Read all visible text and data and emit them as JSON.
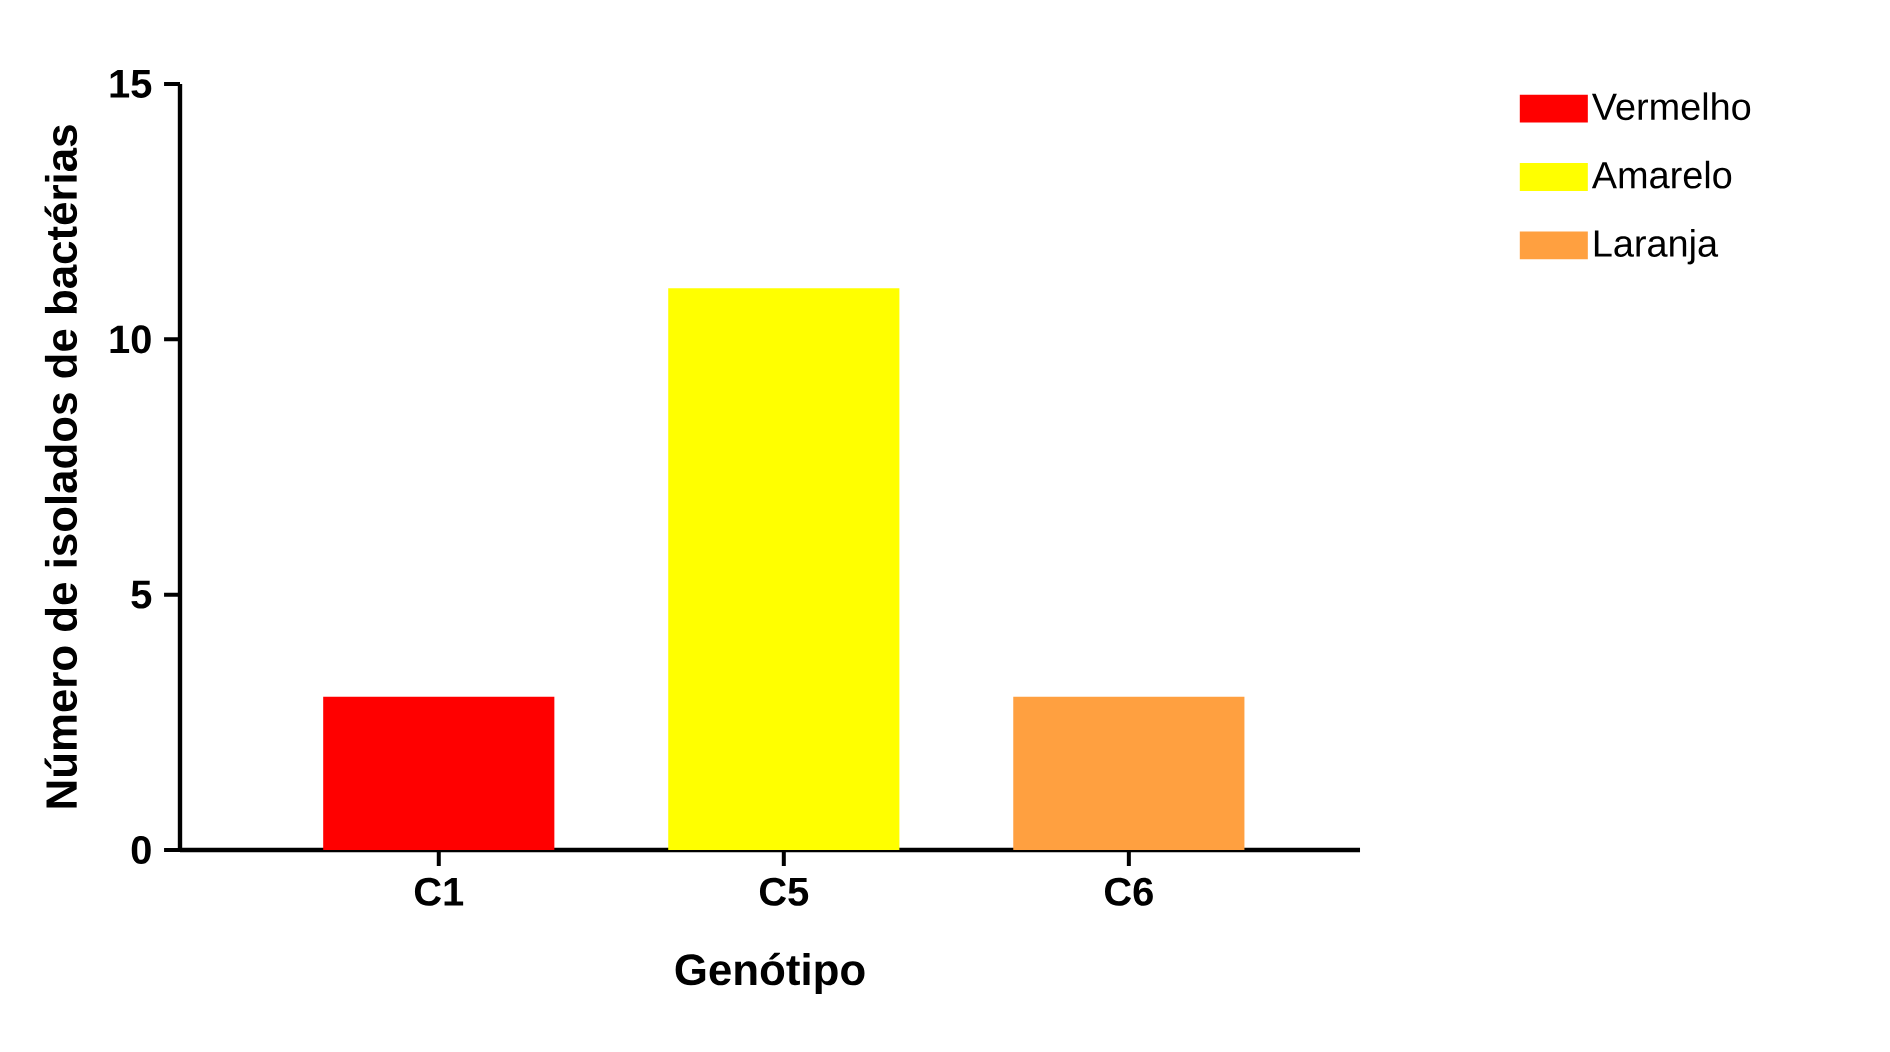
{
  "chart_data": {
    "type": "bar",
    "xlabel": "Genótipo",
    "ylabel": "Número de isolados de bactérias",
    "categories": [
      "C1",
      "C5",
      "C6"
    ],
    "series": [
      {
        "name": "Vermelho",
        "color": "#ff0000",
        "values": [
          3,
          null,
          null
        ]
      },
      {
        "name": "Amarelo",
        "color": "#ffff00",
        "values": [
          null,
          11,
          null
        ]
      },
      {
        "name": "Laranja",
        "color": "#ffa040",
        "values": [
          null,
          null,
          3
        ]
      }
    ],
    "ylim": [
      0,
      15
    ],
    "yticks": [
      0,
      5,
      10,
      15
    ],
    "legend": "right"
  }
}
